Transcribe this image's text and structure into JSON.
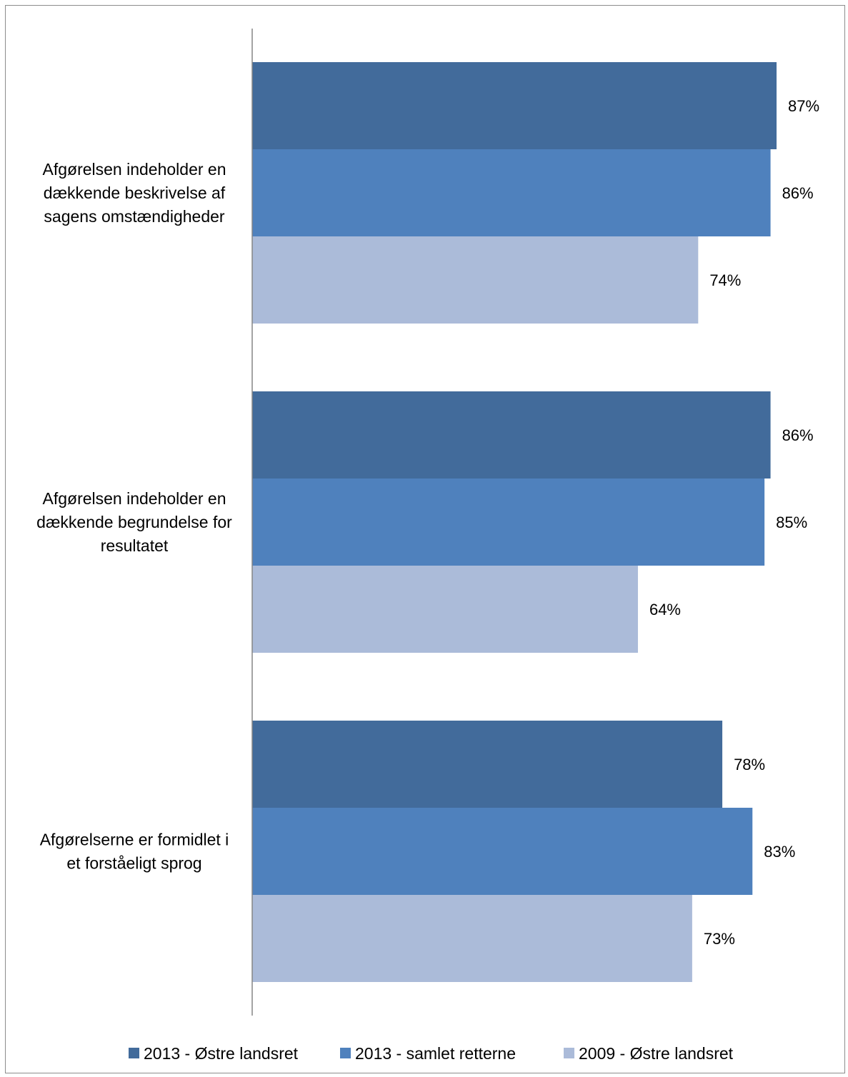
{
  "chart_data": {
    "type": "bar",
    "orientation": "horizontal",
    "categories": [
      [
        "Afgørelsen indeholder en",
        "dækkende beskrivelse af",
        "sagens omstændigheder"
      ],
      [
        "Afgørelsen indeholder en",
        "dækkende begrundelse for",
        "resultatet"
      ],
      [
        "Afgørelserne er formidlet i",
        "et forståeligt sprog"
      ]
    ],
    "series": [
      {
        "name": "2013 - Østre landsret",
        "values": [
          87,
          86,
          78
        ],
        "labels": [
          "87%",
          "86%",
          "78%"
        ],
        "color": "#426b9b"
      },
      {
        "name": "2013 - samlet retterne",
        "values": [
          86,
          85,
          83
        ],
        "labels": [
          "86%",
          "85%",
          "83%"
        ],
        "color": "#4f81bd"
      },
      {
        "name": "2009 - Østre landsret",
        "values": [
          74,
          64,
          73
        ],
        "labels": [
          "74%",
          "64%",
          "73%"
        ],
        "color": "#abbbd9"
      }
    ],
    "xlim": [
      0,
      100
    ],
    "value_unit": "%",
    "grid": false,
    "legend_position": "bottom"
  }
}
